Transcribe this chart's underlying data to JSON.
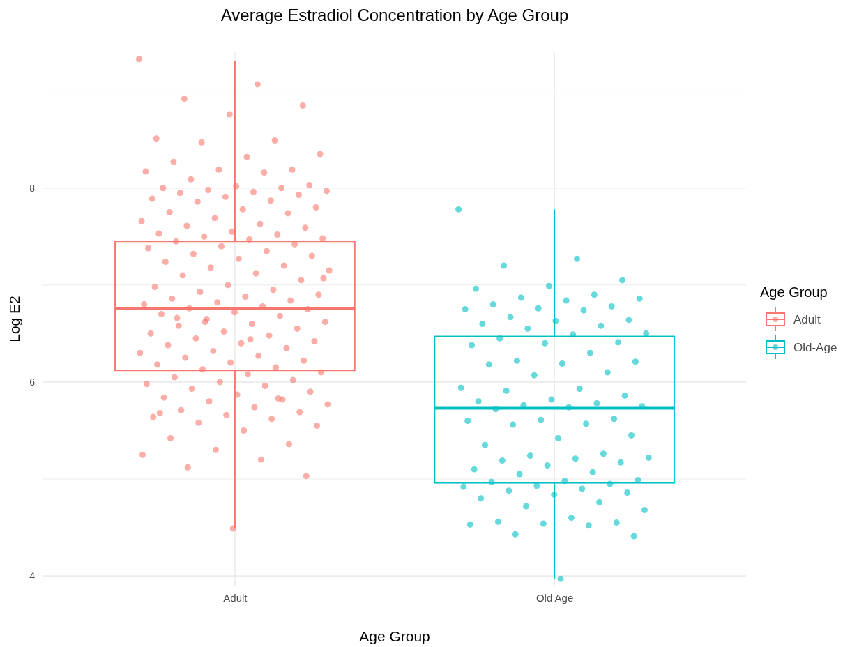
{
  "chart_data": {
    "type": "box",
    "title": "Average Estradiol Concentration by Age Group",
    "xlabel": "Age Group",
    "ylabel": "Log E2",
    "legend_title": "Age Group",
    "categories": [
      "Adult",
      "Old Age"
    ],
    "ylim": [
      3.9,
      9.4
    ],
    "yticks": [
      4,
      {
        "value": 5,
        "label": null
      },
      6,
      {
        "value": 7,
        "label": null
      },
      8,
      {
        "value": 9,
        "label": null
      }
    ],
    "grid": true,
    "legend": "right",
    "series": [
      {
        "name": "Adult",
        "color": "#f8766d",
        "boxes": [
          {
            "low": 4.49,
            "q1": 6.12,
            "median": 6.76,
            "q3": 7.45,
            "high": 9.31
          },
          null
        ]
      },
      {
        "name": "Old-Age",
        "color": "#00bfc4",
        "boxes": [
          null,
          {
            "low": 3.97,
            "q1": 4.96,
            "median": 5.73,
            "q3": 6.47,
            "high": 7.78
          }
        ]
      },
      {
        "type": "scatter",
        "marker": "circle",
        "color": "#f8766d",
        "x": [
          "Adult",
          "Adult",
          "Adult",
          "Adult",
          "Adult",
          "Adult",
          "Adult",
          "Adult",
          "Adult",
          "Adult",
          "Adult",
          "Adult",
          "Adult",
          "Adult",
          "Adult",
          "Adult",
          "Adult",
          "Adult",
          "Adult",
          "Adult",
          "Adult",
          "Adult",
          "Adult",
          "Adult",
          "Adult",
          "Adult",
          "Adult",
          "Adult",
          "Adult",
          "Adult",
          "Adult",
          "Adult",
          "Adult",
          "Adult",
          "Adult",
          "Adult",
          "Adult",
          "Adult",
          "Adult",
          "Adult",
          "Adult",
          "Adult",
          "Adult",
          "Adult",
          "Adult",
          "Adult",
          "Adult",
          "Adult",
          "Adult",
          "Adult",
          "Adult",
          "Adult",
          "Adult",
          "Adult",
          "Adult",
          "Adult",
          "Adult",
          "Adult",
          "Adult",
          "Adult",
          "Adult",
          "Adult",
          "Adult",
          "Adult",
          "Adult",
          "Adult",
          "Adult",
          "Adult",
          "Adult",
          "Adult",
          "Adult",
          "Adult",
          "Adult",
          "Adult",
          "Adult",
          "Adult",
          "Adult",
          "Adult",
          "Adult",
          "Adult",
          "Adult",
          "Adult",
          "Adult",
          "Adult",
          "Adult",
          "Adult",
          "Adult",
          "Adult",
          "Adult",
          "Adult",
          "Adult",
          "Adult",
          "Adult",
          "Adult",
          "Adult",
          "Adult",
          "Adult",
          "Adult",
          "Adult",
          "Adult",
          "Adult",
          "Adult",
          "Adult",
          "Adult",
          "Adult",
          "Adult",
          "Adult",
          "Adult",
          "Adult",
          "Adult",
          "Adult",
          "Adult",
          "Adult",
          "Adult",
          "Adult",
          "Adult",
          "Adult",
          "Adult",
          "Adult",
          "Adult",
          "Adult",
          "Adult",
          "Adult",
          "Adult",
          "Adult",
          "Adult",
          "Adult",
          "Adult",
          "Adult",
          "Adult",
          "Adult",
          "Adult",
          "Adult",
          "Adult"
        ],
        "values": [
          9.33,
          9.07,
          8.92,
          8.85,
          8.76,
          8.51,
          8.49,
          8.47,
          8.35,
          8.32,
          8.27,
          8.19,
          8.19,
          8.17,
          8.16,
          8.09,
          8.03,
          8.02,
          8.0,
          8.0,
          7.98,
          7.97,
          7.96,
          7.95,
          7.93,
          7.91,
          7.89,
          7.87,
          7.86,
          7.8,
          7.78,
          7.75,
          7.74,
          7.69,
          7.66,
          7.63,
          7.61,
          7.59,
          7.55,
          7.53,
          7.52,
          7.5,
          7.48,
          7.47,
          7.45,
          7.42,
          7.4,
          7.38,
          7.35,
          7.32,
          7.3,
          7.27,
          7.24,
          7.2,
          7.18,
          7.15,
          7.12,
          7.1,
          7.05,
          7.0,
          6.98,
          6.95,
          6.93,
          6.9,
          6.88,
          6.86,
          6.84,
          6.82,
          6.8,
          6.78,
          6.76,
          6.75,
          6.72,
          6.7,
          6.68,
          6.65,
          6.62,
          6.6,
          6.58,
          6.55,
          6.52,
          6.5,
          6.48,
          6.45,
          6.42,
          6.4,
          6.38,
          6.35,
          6.32,
          6.3,
          6.27,
          6.25,
          6.22,
          6.2,
          6.18,
          6.15,
          6.13,
          6.1,
          6.08,
          6.05,
          6.02,
          6.0,
          5.98,
          5.96,
          5.93,
          5.9,
          5.87,
          5.84,
          5.82,
          5.8,
          5.77,
          5.74,
          5.71,
          5.69,
          5.66,
          5.64,
          5.62,
          5.58,
          5.55,
          5.5,
          5.42,
          5.36,
          5.3,
          5.25,
          5.2,
          5.12,
          5.03,
          4.49,
          5.68,
          5.83,
          6.62,
          7.07,
          6.44,
          6.66
        ]
      },
      {
        "type": "scatter",
        "marker": "circle",
        "color": "#00bfc4",
        "x": [
          "Old Age",
          "Old Age",
          "Old Age",
          "Old Age",
          "Old Age",
          "Old Age",
          "Old Age",
          "Old Age",
          "Old Age",
          "Old Age",
          "Old Age",
          "Old Age",
          "Old Age",
          "Old Age",
          "Old Age",
          "Old Age",
          "Old Age",
          "Old Age",
          "Old Age",
          "Old Age",
          "Old Age",
          "Old Age",
          "Old Age",
          "Old Age",
          "Old Age",
          "Old Age",
          "Old Age",
          "Old Age",
          "Old Age",
          "Old Age",
          "Old Age",
          "Old Age",
          "Old Age",
          "Old Age",
          "Old Age",
          "Old Age",
          "Old Age",
          "Old Age",
          "Old Age",
          "Old Age",
          "Old Age",
          "Old Age",
          "Old Age",
          "Old Age",
          "Old Age",
          "Old Age",
          "Old Age",
          "Old Age",
          "Old Age",
          "Old Age",
          "Old Age",
          "Old Age",
          "Old Age",
          "Old Age",
          "Old Age",
          "Old Age",
          "Old Age",
          "Old Age",
          "Old Age",
          "Old Age",
          "Old Age",
          "Old Age",
          "Old Age",
          "Old Age",
          "Old Age",
          "Old Age",
          "Old Age",
          "Old Age",
          "Old Age",
          "Old Age",
          "Old Age",
          "Old Age",
          "Old Age",
          "Old Age",
          "Old Age",
          "Old Age",
          "Old Age",
          "Old Age",
          "Old Age",
          "Old Age",
          "Old Age",
          "Old Age",
          "Old Age",
          "Old Age",
          "Old Age",
          "Old Age"
        ],
        "values": [
          7.78,
          7.27,
          7.2,
          7.05,
          6.99,
          6.96,
          6.9,
          6.87,
          6.86,
          6.84,
          6.8,
          6.78,
          6.76,
          6.75,
          6.74,
          6.67,
          6.64,
          6.63,
          6.6,
          6.58,
          6.55,
          6.5,
          6.49,
          6.45,
          6.41,
          6.4,
          6.38,
          6.3,
          6.22,
          6.21,
          6.19,
          6.18,
          6.1,
          6.07,
          5.94,
          5.93,
          5.91,
          5.86,
          5.82,
          5.8,
          5.78,
          5.76,
          5.75,
          5.74,
          5.72,
          5.62,
          5.61,
          5.6,
          5.57,
          5.56,
          5.45,
          5.42,
          5.35,
          5.26,
          5.24,
          5.22,
          5.21,
          5.19,
          5.17,
          5.14,
          5.1,
          5.07,
          5.05,
          4.99,
          4.98,
          4.97,
          4.95,
          4.93,
          4.92,
          4.9,
          4.88,
          4.86,
          4.84,
          4.8,
          4.76,
          4.72,
          4.68,
          4.6,
          4.56,
          4.55,
          4.54,
          4.53,
          4.52,
          4.43,
          4.41,
          3.97
        ]
      }
    ]
  }
}
